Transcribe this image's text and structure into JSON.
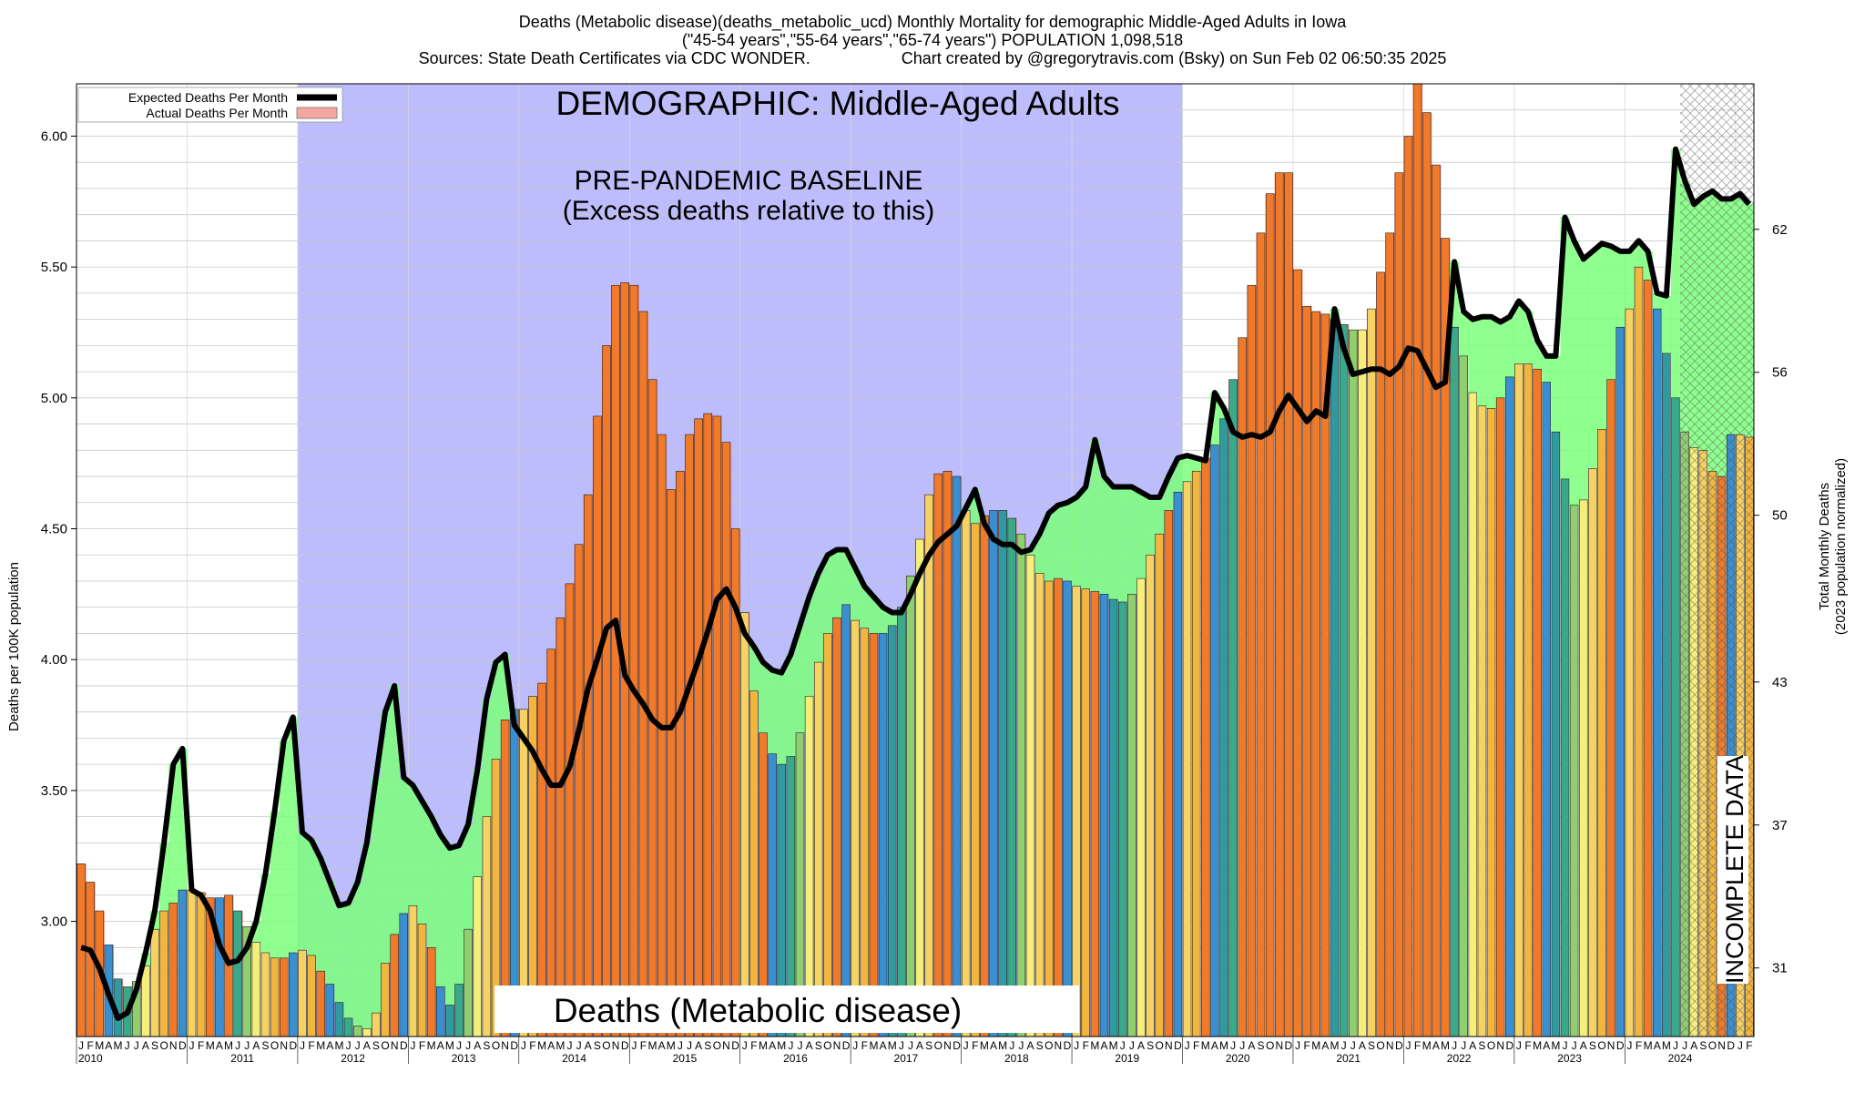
{
  "header": {
    "line1": "Deaths (Metabolic disease)(deaths_metabolic_ucd) Monthly Mortality for demographic Middle-Aged Adults in Iowa",
    "line2": "(\"45-54 years\",\"55-64 years\",\"65-74 years\") POPULATION 1,098,518",
    "line3_left": "Sources: State Death Certificates via CDC WONDER.",
    "line3_right": "Chart created by @gregorytravis.com (Bsky) on Sun Feb 02 06:50:35 2025"
  },
  "annotations": {
    "demographic": "DEMOGRAPHIC: Middle-Aged Adults",
    "baseline_1": "PRE-PANDEMIC BASELINE",
    "baseline_2": "(Excess deaths relative to this)",
    "cause": "Deaths (Metabolic disease)",
    "incomplete": "INCOMPLETE DATA"
  },
  "colors": {
    "baseline_band": "#bdbdfd",
    "excess_fill": "#ff8a80",
    "deficit_fill": "#7dff7d",
    "expected_line": "#000000",
    "bar_palette": [
      "#3a8fd0",
      "#2f9aa0",
      "#3aa98a",
      "#8fcf6e",
      "#f5ef7a",
      "#f5d262",
      "#f2b63e",
      "#f07a2a"
    ],
    "incomplete_hatch": "#555555"
  },
  "chart_data": {
    "type": "bar",
    "title": "Deaths (Metabolic disease)(deaths_metabolic_ucd) Monthly Mortality for demographic Middle-Aged Adults in Iowa",
    "ylabel": "Deaths per 100K population",
    "y2label_1": "Total Monthly Deaths",
    "y2label_2": "(2023 population normalized)",
    "ylim": [
      2.56,
      6.2
    ],
    "yticks": [
      3.0,
      3.5,
      4.0,
      4.5,
      5.0,
      5.5,
      6.0
    ],
    "y_tick_labels": [
      "3.00",
      "3.50",
      "4.00",
      "4.50",
      "5.00",
      "5.50",
      "6.00"
    ],
    "y2ticks": [
      31,
      37,
      43,
      50,
      56,
      62
    ],
    "start": "2010-01",
    "months": [
      "J",
      "F",
      "M",
      "A",
      "M",
      "J",
      "J",
      "A",
      "S",
      "O",
      "N",
      "D"
    ],
    "years": [
      "2010",
      "2011",
      "2012",
      "2013",
      "2014",
      "2015",
      "2016",
      "2017",
      "2018",
      "2019",
      "2020",
      "2021",
      "2022",
      "2023",
      "2024"
    ],
    "baseline_range": [
      "2012-01",
      "2019-12"
    ],
    "incomplete_from": "2024-07",
    "legend": {
      "position": "top-left",
      "items": [
        "Expected Deaths Per Month",
        "Actual Deaths Per Month"
      ]
    },
    "series": [
      {
        "name": "Actual Deaths Per Month",
        "values": [
          3.22,
          3.15,
          3.04,
          2.91,
          2.78,
          2.75,
          2.77,
          2.83,
          2.97,
          3.04,
          3.07,
          3.12,
          3.12,
          3.11,
          3.09,
          3.09,
          3.1,
          3.04,
          2.98,
          2.92,
          2.88,
          2.86,
          2.86,
          2.88,
          2.89,
          2.87,
          2.81,
          2.76,
          2.69,
          2.63,
          2.6,
          2.59,
          2.65,
          2.84,
          2.95,
          3.03,
          3.06,
          2.99,
          2.9,
          2.75,
          2.68,
          2.76,
          2.97,
          3.17,
          3.4,
          3.62,
          3.77,
          3.81,
          3.81,
          3.86,
          3.91,
          4.04,
          4.16,
          4.29,
          4.44,
          4.63,
          4.93,
          5.2,
          5.43,
          5.44,
          5.43,
          5.33,
          5.07,
          4.86,
          4.65,
          4.72,
          4.86,
          4.92,
          4.94,
          4.93,
          4.83,
          4.5,
          4.18,
          3.88,
          3.72,
          3.64,
          3.6,
          3.63,
          3.72,
          3.86,
          3.99,
          4.1,
          4.16,
          4.21,
          4.15,
          4.12,
          4.1,
          4.1,
          4.13,
          4.2,
          4.32,
          4.46,
          4.63,
          4.71,
          4.72,
          4.7,
          4.57,
          4.52,
          4.55,
          4.57,
          4.57,
          4.54,
          4.48,
          4.4,
          4.33,
          4.3,
          4.31,
          4.3,
          4.28,
          4.27,
          4.26,
          4.25,
          4.23,
          4.22,
          4.25,
          4.31,
          4.4,
          4.48,
          4.57,
          4.64,
          4.68,
          4.72,
          4.77,
          4.82,
          4.92,
          5.07,
          5.23,
          5.43,
          5.63,
          5.78,
          5.86,
          5.86,
          5.49,
          5.35,
          5.33,
          5.32,
          5.3,
          5.28,
          5.26,
          5.26,
          5.34,
          5.48,
          5.63,
          5.86,
          6.0,
          6.2,
          6.09,
          5.89,
          5.61,
          5.27,
          5.16,
          5.02,
          4.97,
          4.96,
          5.0,
          5.08,
          5.13,
          5.13,
          5.11,
          5.06,
          4.87,
          4.69,
          4.59,
          4.61,
          4.73,
          4.88,
          5.07,
          5.27,
          5.34,
          5.5,
          5.45,
          5.34,
          5.17,
          5.0,
          4.87,
          4.81,
          4.8,
          4.72,
          4.7,
          4.86,
          4.86,
          4.85
        ]
      },
      {
        "name": "Expected Deaths Per Month",
        "values": [
          2.9,
          2.89,
          2.82,
          2.72,
          2.63,
          2.65,
          2.74,
          2.88,
          3.04,
          3.3,
          3.6,
          3.66,
          3.12,
          3.1,
          3.04,
          2.91,
          2.84,
          2.85,
          2.9,
          3.0,
          3.18,
          3.42,
          3.69,
          3.78,
          3.34,
          3.31,
          3.24,
          3.15,
          3.06,
          3.07,
          3.15,
          3.3,
          3.55,
          3.8,
          3.9,
          3.55,
          3.52,
          3.46,
          3.4,
          3.33,
          3.28,
          3.29,
          3.37,
          3.58,
          3.85,
          3.99,
          4.02,
          3.75,
          3.7,
          3.65,
          3.58,
          3.52,
          3.52,
          3.59,
          3.73,
          3.89,
          4.0,
          4.12,
          4.15,
          3.94,
          3.88,
          3.83,
          3.77,
          3.74,
          3.74,
          3.8,
          3.9,
          4.0,
          4.11,
          4.23,
          4.27,
          4.2,
          4.1,
          4.05,
          3.99,
          3.96,
          3.95,
          4.02,
          4.13,
          4.24,
          4.33,
          4.4,
          4.42,
          4.42,
          4.35,
          4.28,
          4.24,
          4.2,
          4.18,
          4.18,
          4.25,
          4.33,
          4.4,
          4.45,
          4.48,
          4.51,
          4.58,
          4.65,
          4.52,
          4.46,
          4.44,
          4.44,
          4.41,
          4.42,
          4.48,
          4.56,
          4.59,
          4.6,
          4.62,
          4.66,
          4.84,
          4.7,
          4.66,
          4.66,
          4.66,
          4.64,
          4.62,
          4.62,
          4.7,
          4.77,
          4.78,
          4.77,
          4.76,
          5.02,
          4.96,
          4.87,
          4.85,
          4.86,
          4.85,
          4.87,
          4.95,
          5.01,
          4.96,
          4.91,
          4.95,
          4.93,
          5.34,
          5.19,
          5.09,
          5.1,
          5.11,
          5.11,
          5.09,
          5.12,
          5.19,
          5.18,
          5.11,
          5.04,
          5.06,
          5.52,
          5.33,
          5.3,
          5.31,
          5.31,
          5.29,
          5.31,
          5.37,
          5.33,
          5.22,
          5.16,
          5.16,
          5.69,
          5.6,
          5.53,
          5.56,
          5.59,
          5.58,
          5.56,
          5.56,
          5.6,
          5.56,
          5.4,
          5.39,
          5.95,
          5.83,
          5.74,
          5.77,
          5.79,
          5.76,
          5.76,
          5.78,
          5.74
        ]
      }
    ]
  }
}
